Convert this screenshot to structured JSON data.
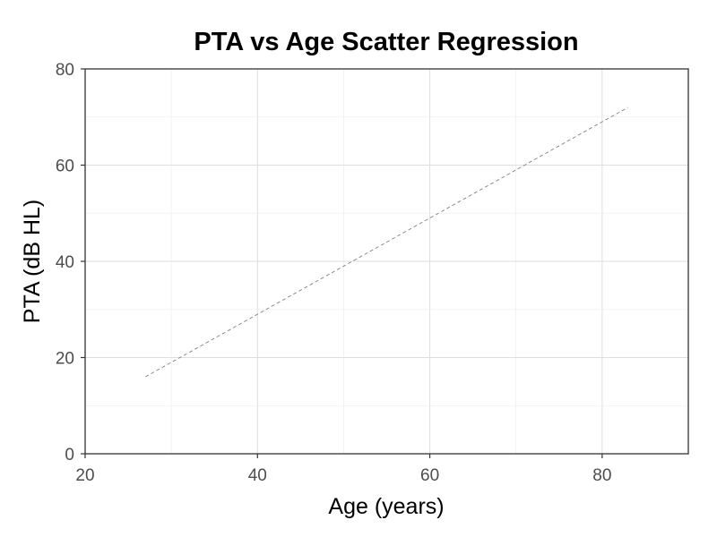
{
  "chart_data": {
    "type": "scatter",
    "title": "PTA vs Age Scatter Regression",
    "xlabel": "Age (years)",
    "ylabel": "PTA (dB HL)",
    "xlim": [
      20,
      90
    ],
    "ylim": [
      0,
      80
    ],
    "x_ticks": [
      20,
      40,
      60,
      80
    ],
    "y_ticks": [
      0,
      20,
      40,
      60,
      80
    ],
    "grid": true,
    "points": [],
    "regression_line": {
      "style": "dashed",
      "color": "#808080",
      "points": [
        {
          "x": 27,
          "y": 16
        },
        {
          "x": 83,
          "y": 72
        }
      ]
    }
  }
}
